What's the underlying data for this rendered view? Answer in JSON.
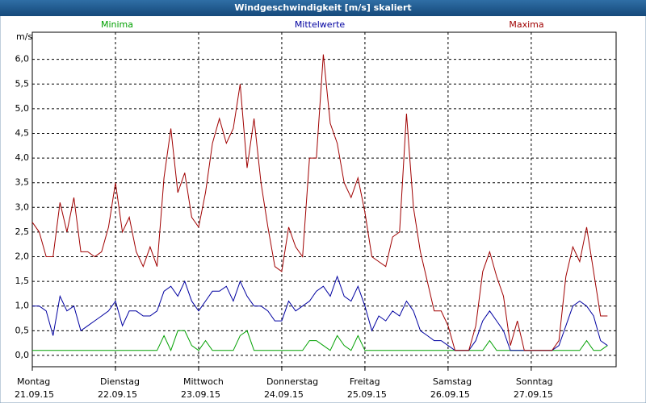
{
  "chart_data": {
    "type": "line",
    "title": "Windgeschwindigkeit [m/s] skaliert",
    "y_label": "m/s",
    "x": [
      0,
      2,
      4,
      6,
      8,
      10,
      12,
      14,
      16,
      18,
      20,
      22,
      24,
      26,
      28,
      30,
      32,
      34,
      36,
      38,
      40,
      42,
      44,
      46,
      48,
      50,
      52,
      54,
      56,
      58,
      60,
      62,
      64,
      66,
      68,
      70,
      72,
      74,
      76,
      78,
      80,
      82,
      84,
      86,
      88,
      90,
      92,
      94,
      96,
      98,
      100,
      102,
      104,
      106,
      108,
      110,
      112,
      114,
      116,
      118,
      120,
      122,
      124,
      126,
      128,
      130,
      132,
      134,
      136,
      138,
      140,
      142,
      144,
      146,
      148,
      150,
      152,
      154,
      156,
      158,
      160,
      162,
      164,
      166
    ],
    "series": [
      {
        "name": "Minima",
        "color": "#00a000",
        "values": [
          0.1,
          0.1,
          0.1,
          0.1,
          0.1,
          0.1,
          0.1,
          0.1,
          0.1,
          0.1,
          0.1,
          0.1,
          0.1,
          0.1,
          0.1,
          0.1,
          0.1,
          0.1,
          0.1,
          0.4,
          0.1,
          0.5,
          0.5,
          0.2,
          0.1,
          0.3,
          0.1,
          0.1,
          0.1,
          0.1,
          0.4,
          0.5,
          0.1,
          0.1,
          0.1,
          0.1,
          0.1,
          0.1,
          0.1,
          0.1,
          0.3,
          0.3,
          0.2,
          0.1,
          0.4,
          0.2,
          0.1,
          0.4,
          0.1,
          0.1,
          0.1,
          0.1,
          0.1,
          0.1,
          0.1,
          0.1,
          0.1,
          0.1,
          0.1,
          0.1,
          0.1,
          0.1,
          0.1,
          0.1,
          0.1,
          0.1,
          0.3,
          0.1,
          0.1,
          0.1,
          0.1,
          0.1,
          0.1,
          0.1,
          0.1,
          0.1,
          0.1,
          0.1,
          0.1,
          0.1,
          0.3,
          0.1,
          0.1,
          0.2
        ]
      },
      {
        "name": "Mittelwerte",
        "color": "#0000a0",
        "values": [
          1.0,
          1.0,
          0.9,
          0.4,
          1.2,
          0.9,
          1.0,
          0.5,
          0.6,
          0.7,
          0.8,
          0.9,
          1.1,
          0.6,
          0.9,
          0.9,
          0.8,
          0.8,
          0.9,
          1.3,
          1.4,
          1.2,
          1.5,
          1.1,
          0.9,
          1.1,
          1.3,
          1.3,
          1.4,
          1.1,
          1.5,
          1.2,
          1.0,
          1.0,
          0.9,
          0.7,
          0.7,
          1.1,
          0.9,
          1.0,
          1.1,
          1.3,
          1.4,
          1.2,
          1.6,
          1.2,
          1.1,
          1.4,
          1.0,
          0.5,
          0.8,
          0.7,
          0.9,
          0.8,
          1.1,
          0.9,
          0.5,
          0.4,
          0.3,
          0.3,
          0.2,
          0.1,
          0.1,
          0.1,
          0.3,
          0.7,
          0.9,
          0.7,
          0.5,
          0.1,
          0.1,
          0.1,
          0.1,
          0.1,
          0.1,
          0.1,
          0.2,
          0.6,
          1.0,
          1.1,
          1.0,
          0.8,
          0.3,
          0.2
        ]
      },
      {
        "name": "Maxima",
        "color": "#a00000",
        "values": [
          2.7,
          2.5,
          2.0,
          2.0,
          3.1,
          2.5,
          3.2,
          2.1,
          2.1,
          2.0,
          2.1,
          2.6,
          3.5,
          2.5,
          2.8,
          2.1,
          1.8,
          2.2,
          1.8,
          3.6,
          4.6,
          3.3,
          3.7,
          2.8,
          2.6,
          3.3,
          4.3,
          4.8,
          4.3,
          4.6,
          5.5,
          3.8,
          4.8,
          3.5,
          2.6,
          1.8,
          1.7,
          2.6,
          2.2,
          2.0,
          4.0,
          4.0,
          6.1,
          4.7,
          4.3,
          3.5,
          3.2,
          3.6,
          2.9,
          2.0,
          1.9,
          1.8,
          2.4,
          2.5,
          4.9,
          3.0,
          2.1,
          1.5,
          0.9,
          0.9,
          0.6,
          0.1,
          0.1,
          0.1,
          0.6,
          1.7,
          2.1,
          1.6,
          1.2,
          0.2,
          0.7,
          0.1,
          0.1,
          0.1,
          0.1,
          0.1,
          0.3,
          1.6,
          2.2,
          1.9,
          2.6,
          1.7,
          0.8,
          0.8
        ]
      }
    ],
    "xlim": [
      0,
      168.5
    ],
    "xticks": [
      {
        "value": 0,
        "label": "Montag",
        "date": "21.09.15"
      },
      {
        "value": 24,
        "label": "Dienstag",
        "date": "22.09.15"
      },
      {
        "value": 48,
        "label": "Mittwoch",
        "date": "23.09.15"
      },
      {
        "value": 72,
        "label": "Donnerstag",
        "date": "24.09.15"
      },
      {
        "value": 96,
        "label": "Freitag",
        "date": "25.09.15"
      },
      {
        "value": 120,
        "label": "Samstag",
        "date": "26.09.15"
      },
      {
        "value": 144,
        "label": "Sonntag",
        "date": "27.09.15"
      }
    ],
    "ylim": [
      -0.23,
      6.55
    ],
    "yticks": [
      {
        "value": 0,
        "label": "0,0"
      },
      {
        "value": 0.5,
        "label": "0,5"
      },
      {
        "value": 1,
        "label": "1,0"
      },
      {
        "value": 1.5,
        "label": "1,5"
      },
      {
        "value": 2,
        "label": "2,0"
      },
      {
        "value": 2.5,
        "label": "2,5"
      },
      {
        "value": 3,
        "label": "3,0"
      },
      {
        "value": 3.5,
        "label": "3,5"
      },
      {
        "value": 4,
        "label": "4,0"
      },
      {
        "value": 4.5,
        "label": "4,5"
      },
      {
        "value": 5,
        "label": "5,0"
      },
      {
        "value": 5.5,
        "label": "5,5"
      },
      {
        "value": 6,
        "label": "6,0"
      }
    ],
    "grid": true
  }
}
